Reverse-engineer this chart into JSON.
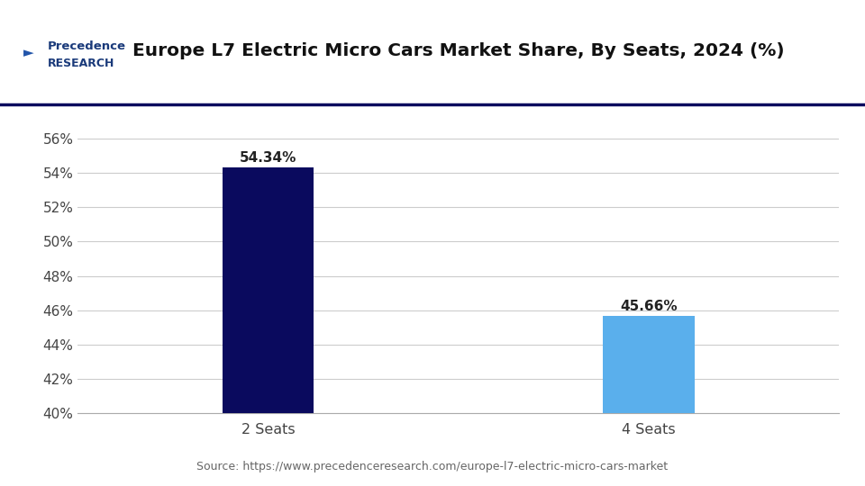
{
  "title": "Europe L7 Electric Micro Cars Market Share, By Seats, 2024 (%)",
  "categories": [
    "2 Seats",
    "4 Seats"
  ],
  "values": [
    54.34,
    45.66
  ],
  "bar_colors": [
    "#0a0a5e",
    "#5aafec"
  ],
  "bar_labels": [
    "54.34%",
    "45.66%"
  ],
  "ylim": [
    40,
    57
  ],
  "yticks": [
    40,
    42,
    44,
    46,
    48,
    50,
    52,
    54,
    56
  ],
  "ytick_labels": [
    "40%",
    "42%",
    "44%",
    "46%",
    "48%",
    "50%",
    "52%",
    "54%",
    "56%"
  ],
  "source_text": "Source: https://www.precedenceresearch.com/europe-l7-electric-micro-cars-market",
  "title_fontsize": 14.5,
  "label_fontsize": 11,
  "tick_fontsize": 11,
  "source_fontsize": 9,
  "background_color": "#ffffff",
  "grid_color": "#cccccc",
  "bar_width": 0.12,
  "x_positions": [
    0.25,
    0.75
  ],
  "xlim": [
    0,
    1
  ]
}
